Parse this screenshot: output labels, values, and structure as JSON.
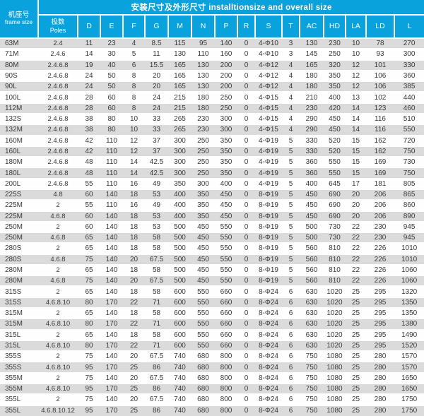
{
  "title": "安装尺寸及外形尺寸 installtionsize and overall size",
  "colors": {
    "header_bg": "#0aa2dc",
    "header_text": "#ffffff",
    "row_stripe_bg": "#dbdbdb",
    "row_bg": "#ffffff",
    "body_text": "#383838"
  },
  "table": {
    "frame_header": {
      "zh": "机座号",
      "en": "frame size"
    },
    "poles_header": {
      "zh": "极数",
      "en": "Poles"
    },
    "columns": [
      "D",
      "E",
      "F",
      "G",
      "M",
      "N",
      "P",
      "R",
      "S",
      "T",
      "AC",
      "HD",
      "LA",
      "LD",
      "L"
    ],
    "rows": [
      [
        "63M",
        "2.4",
        "11",
        "23",
        "4",
        "8.5",
        "115",
        "95",
        "140",
        "0",
        "4-Φ10",
        "3",
        "130",
        "230",
        "10",
        "78",
        "270"
      ],
      [
        "71M",
        "2.4.6",
        "14",
        "30",
        "5",
        "11",
        "130",
        "110",
        "160",
        "0",
        "4-Φ10",
        "3",
        "145",
        "250",
        "10",
        "93",
        "300"
      ],
      [
        "80M",
        "2.4.6.8",
        "19",
        "40",
        "6",
        "15.5",
        "165",
        "130",
        "200",
        "0",
        "4-Φ12",
        "4",
        "165",
        "320",
        "12",
        "101",
        "330"
      ],
      [
        "90S",
        "2.4.6.8",
        "24",
        "50",
        "8",
        "20",
        "165",
        "130",
        "200",
        "0",
        "4-Φ12",
        "4",
        "180",
        "350",
        "12",
        "106",
        "360"
      ],
      [
        "90L",
        "2.4.6.8",
        "24",
        "50",
        "8",
        "20",
        "165",
        "130",
        "200",
        "0",
        "4-Φ12",
        "4",
        "180",
        "350",
        "12",
        "106",
        "385"
      ],
      [
        "100L",
        "2.4.6.8",
        "28",
        "60",
        "8",
        "24",
        "215",
        "180",
        "250",
        "0",
        "4-Φ15",
        "4",
        "210",
        "400",
        "13",
        "102",
        "440"
      ],
      [
        "112M",
        "2.4.6.8",
        "28",
        "60",
        "8",
        "24",
        "215",
        "180",
        "250",
        "0",
        "4-Φ15",
        "4",
        "230",
        "420",
        "14",
        "123",
        "460"
      ],
      [
        "132S",
        "2.4.6.8",
        "38",
        "80",
        "10",
        "33",
        "265",
        "230",
        "300",
        "0",
        "4-Φ15",
        "4",
        "290",
        "450",
        "14",
        "116",
        "510"
      ],
      [
        "132M",
        "2.4.6.8",
        "38",
        "80",
        "10",
        "33",
        "265",
        "230",
        "300",
        "0",
        "4-Φ15",
        "4",
        "290",
        "450",
        "14",
        "116",
        "550"
      ],
      [
        "160M",
        "2.4.6.8",
        "42",
        "110",
        "12",
        "37",
        "300",
        "250",
        "350",
        "0",
        "4-Φ19",
        "5",
        "330",
        "520",
        "15",
        "162",
        "720"
      ],
      [
        "160L",
        "2.4.6.8",
        "42",
        "110",
        "12",
        "37",
        "300",
        "250",
        "350",
        "0",
        "4-Φ19",
        "5",
        "330",
        "520",
        "15",
        "162",
        "750"
      ],
      [
        "180M",
        "2.4.6.8",
        "48",
        "110",
        "14",
        "42.5",
        "300",
        "250",
        "350",
        "0",
        "4-Φ19",
        "5",
        "360",
        "550",
        "15",
        "169",
        "730"
      ],
      [
        "180L",
        "2.4.6.8",
        "48",
        "110",
        "14",
        "42.5",
        "300",
        "250",
        "350",
        "0",
        "4-Φ19",
        "5",
        "360",
        "550",
        "15",
        "169",
        "750"
      ],
      [
        "200L",
        "2.4.6.8",
        "55",
        "110",
        "16",
        "49",
        "350",
        "300",
        "400",
        "0",
        "4-Φ19",
        "5",
        "400",
        "645",
        "17",
        "181",
        "805"
      ],
      [
        "225S",
        "4.8",
        "60",
        "140",
        "18",
        "53",
        "400",
        "350",
        "450",
        "0",
        "8-Φ19",
        "5",
        "450",
        "690",
        "20",
        "206",
        "865"
      ],
      [
        "225M",
        "2",
        "55",
        "110",
        "16",
        "49",
        "400",
        "350",
        "450",
        "0",
        "8-Φ19",
        "5",
        "450",
        "690",
        "20",
        "206",
        "860"
      ],
      [
        "225M",
        "4.6.8",
        "60",
        "140",
        "18",
        "53",
        "400",
        "350",
        "450",
        "0",
        "8-Φ19",
        "5",
        "450",
        "690",
        "20",
        "206",
        "890"
      ],
      [
        "250M",
        "2",
        "60",
        "140",
        "18",
        "53",
        "500",
        "450",
        "550",
        "0",
        "8-Φ19",
        "5",
        "500",
        "730",
        "22",
        "230",
        "945"
      ],
      [
        "250M",
        "4.6.8",
        "65",
        "140",
        "18",
        "58",
        "500",
        "450",
        "550",
        "0",
        "8-Φ19",
        "5",
        "500",
        "730",
        "22",
        "230",
        "945"
      ],
      [
        "280S",
        "2",
        "65",
        "140",
        "18",
        "58",
        "500",
        "450",
        "550",
        "0",
        "8-Φ19",
        "5",
        "560",
        "810",
        "22",
        "226",
        "1010"
      ],
      [
        "280S",
        "4.6.8",
        "75",
        "140",
        "20",
        "67.5",
        "500",
        "450",
        "550",
        "0",
        "8-Φ19",
        "5",
        "560",
        "810",
        "22",
        "226",
        "1010"
      ],
      [
        "280M",
        "2",
        "65",
        "140",
        "18",
        "58",
        "500",
        "450",
        "550",
        "0",
        "8-Φ19",
        "5",
        "560",
        "810",
        "22",
        "226",
        "1060"
      ],
      [
        "280M",
        "4.6.8",
        "75",
        "140",
        "20",
        "67.5",
        "500",
        "450",
        "550",
        "0",
        "8-Φ19",
        "5",
        "560",
        "810",
        "22",
        "226",
        "1060"
      ],
      [
        "315S",
        "2",
        "65",
        "140",
        "18",
        "58",
        "600",
        "550",
        "660",
        "0",
        "8-Φ24",
        "6",
        "630",
        "1020",
        "25",
        "295",
        "1320"
      ],
      [
        "315S",
        "4.6.8.10",
        "80",
        "170",
        "22",
        "71",
        "600",
        "550",
        "660",
        "0",
        "8-Φ24",
        "6",
        "630",
        "1020",
        "25",
        "295",
        "1350"
      ],
      [
        "315M",
        "2",
        "65",
        "140",
        "18",
        "58",
        "600",
        "550",
        "660",
        "0",
        "8-Φ24",
        "6",
        "630",
        "1020",
        "25",
        "295",
        "1350"
      ],
      [
        "315M",
        "4.6.8.10",
        "80",
        "170",
        "22",
        "71",
        "600",
        "550",
        "660",
        "0",
        "8-Φ24",
        "6",
        "630",
        "1020",
        "25",
        "295",
        "1380"
      ],
      [
        "315L",
        "2",
        "65",
        "140",
        "18",
        "58",
        "600",
        "550",
        "660",
        "0",
        "8-Φ24",
        "6",
        "630",
        "1020",
        "25",
        "295",
        "1490"
      ],
      [
        "315L",
        "4.6.8.10",
        "80",
        "170",
        "22",
        "71",
        "600",
        "550",
        "660",
        "0",
        "8-Φ24",
        "6",
        "630",
        "1020",
        "25",
        "295",
        "1520"
      ],
      [
        "355S",
        "2",
        "75",
        "140",
        "20",
        "67.5",
        "740",
        "680",
        "800",
        "0",
        "8-Φ24",
        "6",
        "750",
        "1080",
        "25",
        "280",
        "1570"
      ],
      [
        "355S",
        "4.6.8.10",
        "95",
        "170",
        "25",
        "86",
        "740",
        "680",
        "800",
        "0",
        "8-Φ24",
        "6",
        "750",
        "1080",
        "25",
        "280",
        "1570"
      ],
      [
        "355M",
        "2",
        "75",
        "140",
        "20",
        "67.5",
        "740",
        "680",
        "800",
        "0",
        "8-Φ24",
        "6",
        "750",
        "1080",
        "25",
        "280",
        "1650"
      ],
      [
        "355M",
        "4.6.8.10",
        "95",
        "170",
        "25",
        "86",
        "740",
        "680",
        "800",
        "0",
        "8-Φ24",
        "6",
        "750",
        "1080",
        "25",
        "280",
        "1650"
      ],
      [
        "355L",
        "2",
        "75",
        "140",
        "20",
        "67.5",
        "740",
        "680",
        "800",
        "0",
        "8-Φ24",
        "6",
        "750",
        "1080",
        "25",
        "280",
        "1750"
      ],
      [
        "355L",
        "4.6.8.10.12",
        "95",
        "170",
        "25",
        "86",
        "740",
        "680",
        "800",
        "0",
        "8-Φ24",
        "6",
        "750",
        "1080",
        "25",
        "280",
        "1750"
      ]
    ]
  }
}
